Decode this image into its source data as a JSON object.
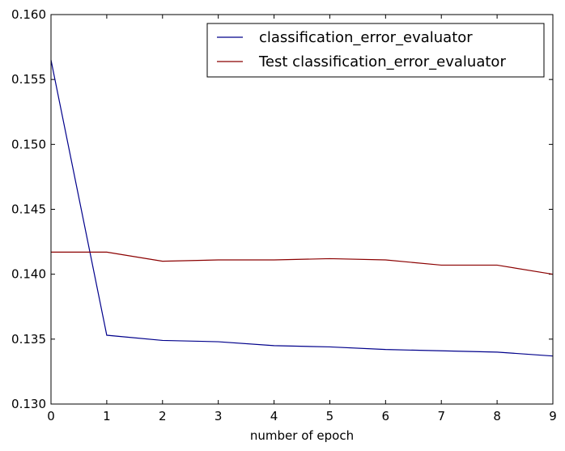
{
  "chart_data": {
    "type": "line",
    "title": "",
    "xlabel": "number of epoch",
    "ylabel": "",
    "x": [
      0,
      1,
      2,
      3,
      4,
      5,
      6,
      7,
      8,
      9
    ],
    "xlim": [
      0,
      9
    ],
    "ylim": [
      0.13,
      0.16
    ],
    "x_ticks": [
      0,
      1,
      2,
      3,
      4,
      5,
      6,
      7,
      8,
      9
    ],
    "x_tick_labels": [
      "0",
      "1",
      "2",
      "3",
      "4",
      "5",
      "6",
      "7",
      "8",
      "9"
    ],
    "y_ticks": [
      0.13,
      0.135,
      0.14,
      0.145,
      0.15,
      0.155,
      0.16
    ],
    "y_tick_labels": [
      "0.130",
      "0.135",
      "0.140",
      "0.145",
      "0.150",
      "0.155",
      "0.160"
    ],
    "grid": false,
    "legend_position": "top-right",
    "series": [
      {
        "name": "classification_error_evaluator",
        "color": "#00008b",
        "values": [
          0.1565,
          0.1353,
          0.1349,
          0.1348,
          0.1345,
          0.1344,
          0.1342,
          0.1341,
          0.134,
          0.1337
        ]
      },
      {
        "name": "Test classification_error_evaluator",
        "color": "#8b0000",
        "values": [
          0.1417,
          0.1417,
          0.141,
          0.1411,
          0.1411,
          0.1412,
          0.1411,
          0.1407,
          0.1407,
          0.14
        ]
      }
    ]
  }
}
